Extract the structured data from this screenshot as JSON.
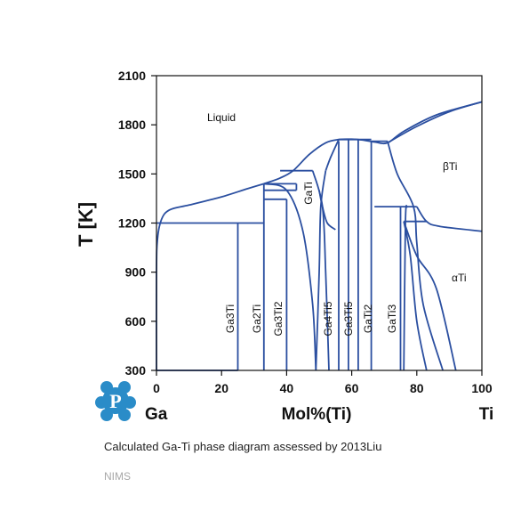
{
  "chart_data": {
    "type": "line",
    "title": "",
    "xlabel": "Mol%(Ti)",
    "ylabel": "T [K]",
    "xlim": [
      0,
      100
    ],
    "ylim": [
      300,
      2100
    ],
    "x_ticks": [
      0,
      20,
      40,
      60,
      80,
      100
    ],
    "y_ticks": [
      300,
      600,
      900,
      1200,
      1500,
      1800,
      2100
    ],
    "left_element": "Ga",
    "right_element": "Ti",
    "line_color": "#2b4fa0",
    "phase_labels": {
      "liquid": "Liquid",
      "beta_ti": "βTi",
      "alpha_ti": "αTi",
      "ga3ti": "Ga3Ti",
      "ga2ti": "Ga2Ti",
      "ga3ti2": "Ga3Ti2",
      "gati": "GaTi",
      "ga4ti5": "Ga4Ti5",
      "ga3ti5": "Ga3Ti5",
      "gati2": "GaTi2",
      "gati3": "GaTi3"
    },
    "series": [
      {
        "values": [
          [
            0,
            300
          ],
          [
            0,
            900
          ],
          [
            0.3,
            1100
          ],
          [
            1.5,
            1220
          ],
          [
            4,
            1280
          ],
          [
            10,
            1310
          ],
          [
            20,
            1360
          ],
          [
            28,
            1410
          ],
          [
            33,
            1440
          ]
        ]
      },
      {
        "values": [
          [
            33,
            1440
          ],
          [
            38,
            1475
          ],
          [
            42,
            1520
          ],
          [
            47,
            1620
          ],
          [
            52,
            1690
          ],
          [
            56,
            1710
          ],
          [
            60,
            1712
          ],
          [
            63,
            1708
          ],
          [
            67,
            1695
          ],
          [
            71,
            1690
          ],
          [
            76,
            1760
          ],
          [
            86,
            1860
          ],
          [
            100,
            1940
          ]
        ]
      },
      {
        "values": [
          [
            71,
            1690
          ],
          [
            80,
            1790
          ],
          [
            90,
            1880
          ],
          [
            100,
            1940
          ]
        ]
      },
      {
        "values": [
          [
            0,
            300
          ],
          [
            25,
            300
          ]
        ]
      },
      {
        "values": [
          [
            0,
            1200
          ],
          [
            33,
            1200
          ]
        ]
      },
      {
        "values": [
          [
            25,
            300
          ],
          [
            25,
            1200
          ]
        ]
      },
      {
        "values": [
          [
            33,
            300
          ],
          [
            33,
            1440
          ]
        ]
      },
      {
        "values": [
          [
            33,
            1440
          ],
          [
            43,
            1440
          ]
        ]
      },
      {
        "values": [
          [
            33,
            1345
          ],
          [
            40,
            1345
          ]
        ]
      },
      {
        "values": [
          [
            33,
            1400
          ],
          [
            43,
            1400
          ]
        ]
      },
      {
        "values": [
          [
            40,
            300
          ],
          [
            40,
            1345
          ]
        ]
      },
      {
        "values": [
          [
            33,
            1440
          ],
          [
            40,
            1400
          ],
          [
            45,
            1150
          ],
          [
            48,
            700
          ],
          [
            49,
            300
          ]
        ]
      },
      {
        "values": [
          [
            43,
            1400
          ],
          [
            43,
            1440
          ]
        ]
      },
      {
        "values": [
          [
            38,
            1520
          ],
          [
            48,
            1520
          ]
        ]
      },
      {
        "values": [
          [
            48,
            1520
          ],
          [
            51,
            1300
          ],
          [
            52,
            900
          ],
          [
            53,
            300
          ]
        ]
      },
      {
        "values": [
          [
            49,
            300
          ],
          [
            50,
            900
          ],
          [
            50.5,
            1300
          ],
          [
            52,
            1520
          ]
        ]
      },
      {
        "values": [
          [
            52,
            1520
          ],
          [
            53.5,
            1600
          ],
          [
            56,
            1710
          ]
        ]
      },
      {
        "values": [
          [
            50,
            1400
          ],
          [
            51,
            1300
          ],
          [
            52.5,
            1200
          ],
          [
            55,
            1160
          ]
        ]
      },
      {
        "values": [
          [
            56,
            300
          ],
          [
            56,
            1700
          ]
        ]
      },
      {
        "values": [
          [
            59,
            300
          ],
          [
            59,
            1710
          ]
        ]
      },
      {
        "values": [
          [
            62,
            300
          ],
          [
            62,
            1710
          ]
        ]
      },
      {
        "values": [
          [
            66,
            300
          ],
          [
            66,
            1700
          ]
        ]
      },
      {
        "values": [
          [
            56,
            1710
          ],
          [
            66,
            1710
          ]
        ]
      },
      {
        "values": [
          [
            66,
            1700
          ],
          [
            71,
            1700
          ]
        ]
      },
      {
        "values": [
          [
            71,
            1700
          ],
          [
            74,
            1500
          ],
          [
            79,
            1300
          ],
          [
            80,
            1080
          ],
          [
            82,
            700
          ],
          [
            88,
            300
          ]
        ]
      },
      {
        "values": [
          [
            67,
            1300
          ],
          [
            80,
            1300
          ]
        ]
      },
      {
        "values": [
          [
            75,
            300
          ],
          [
            75,
            1300
          ]
        ]
      },
      {
        "values": [
          [
            76,
            300
          ],
          [
            76.5,
            1200
          ],
          [
            77,
            1300
          ]
        ]
      },
      {
        "values": [
          [
            76,
            1210
          ],
          [
            83,
            1210
          ]
        ]
      },
      {
        "values": [
          [
            80,
            1300
          ],
          [
            83,
            1210
          ],
          [
            87,
            1180
          ],
          [
            100,
            1150
          ]
        ]
      },
      {
        "values": [
          [
            76,
            1210
          ],
          [
            78,
            1000
          ],
          [
            80,
            600
          ],
          [
            83,
            300
          ]
        ]
      },
      {
        "values": [
          [
            76,
            1210
          ],
          [
            80,
            1000
          ],
          [
            86,
            800
          ],
          [
            92,
            300
          ]
        ]
      }
    ]
  },
  "caption": "Calculated Ga-Ti phase diagram assessed by 2013Liu",
  "credit": "NIMS",
  "logo": {
    "letter": "P",
    "color": "#2a8cc8"
  }
}
